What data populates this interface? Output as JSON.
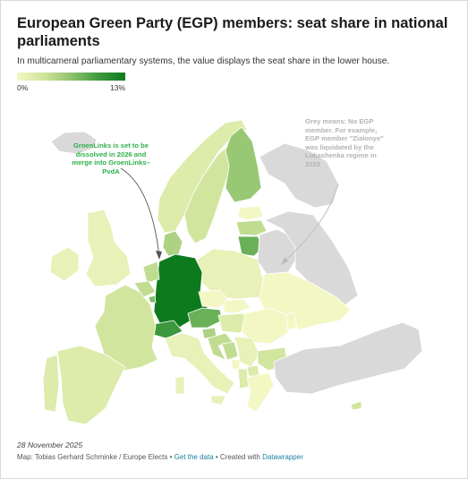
{
  "title": "European Green Party (EGP) members: seat share in national parliaments",
  "subtitle": "In multicameral parliamentary systems, the value displays the seat share in the lower house.",
  "legend": {
    "min_label": "0%",
    "max_label": "13%",
    "min_value": 0,
    "max_value": 13,
    "no_member_color": "#d9d9d9"
  },
  "annotations": {
    "groenlinks": "GroenLinks is set to be dissolved in 2026 and merge into GroenLinks–PvdA",
    "grey": "Grey means: No EGP member. For example, EGP member \"Zialonye\" was liquidated by the Lukashenka regime in 2023"
  },
  "footer": {
    "date": "28 November 2025",
    "map_credit": "Map: Tobias Gerhard Schminke / Europe Elects",
    "sep1": " • ",
    "get_data": "Get the data",
    "sep2": " • Created with ",
    "tool": "Datawrapper"
  },
  "colors": {
    "accent_green": "#2fb04a",
    "link_blue": "#1d81a2"
  },
  "map_data": {
    "type": "choropleth",
    "regions": [
      {
        "id": "germany",
        "value": 13
      },
      {
        "id": "austria",
        "value": 8
      },
      {
        "id": "finland",
        "value": 6
      },
      {
        "id": "sweden",
        "value": 3
      },
      {
        "id": "norway",
        "value": 2
      },
      {
        "id": "denmark",
        "value": 5
      },
      {
        "id": "lithuania",
        "value": 8
      },
      {
        "id": "latvia",
        "value": 4
      },
      {
        "id": "estonia",
        "value": 0
      },
      {
        "id": "netherlands",
        "value": 4
      },
      {
        "id": "belgium",
        "value": 4
      },
      {
        "id": "luxembourg",
        "value": 7
      },
      {
        "id": "france",
        "value": 3
      },
      {
        "id": "switzerland",
        "value": 10
      },
      {
        "id": "ireland",
        "value": 1
      },
      {
        "id": "united-kingdom",
        "value": 1
      },
      {
        "id": "spain",
        "value": 2
      },
      {
        "id": "portugal",
        "value": 2
      },
      {
        "id": "italy",
        "value": 1
      },
      {
        "id": "poland",
        "value": 1
      },
      {
        "id": "czechia",
        "value": 0
      },
      {
        "id": "slovakia",
        "value": 0
      },
      {
        "id": "hungary",
        "value": 2
      },
      {
        "id": "slovenia",
        "value": 5
      },
      {
        "id": "croatia",
        "value": 4
      },
      {
        "id": "bosnia",
        "value": 4
      },
      {
        "id": "serbia",
        "value": 1
      },
      {
        "id": "montenegro",
        "value": 0
      },
      {
        "id": "albania",
        "value": 2
      },
      {
        "id": "north-macedonia",
        "value": 2
      },
      {
        "id": "bulgaria",
        "value": 3
      },
      {
        "id": "romania",
        "value": 0
      },
      {
        "id": "moldova",
        "value": 0
      },
      {
        "id": "ukraine",
        "value": 0
      },
      {
        "id": "greece",
        "value": 0
      },
      {
        "id": "cyprus",
        "value": 3
      },
      {
        "id": "iceland",
        "value": null
      },
      {
        "id": "belarus",
        "value": null
      },
      {
        "id": "russia",
        "value": null
      },
      {
        "id": "turkey",
        "value": null
      }
    ]
  }
}
